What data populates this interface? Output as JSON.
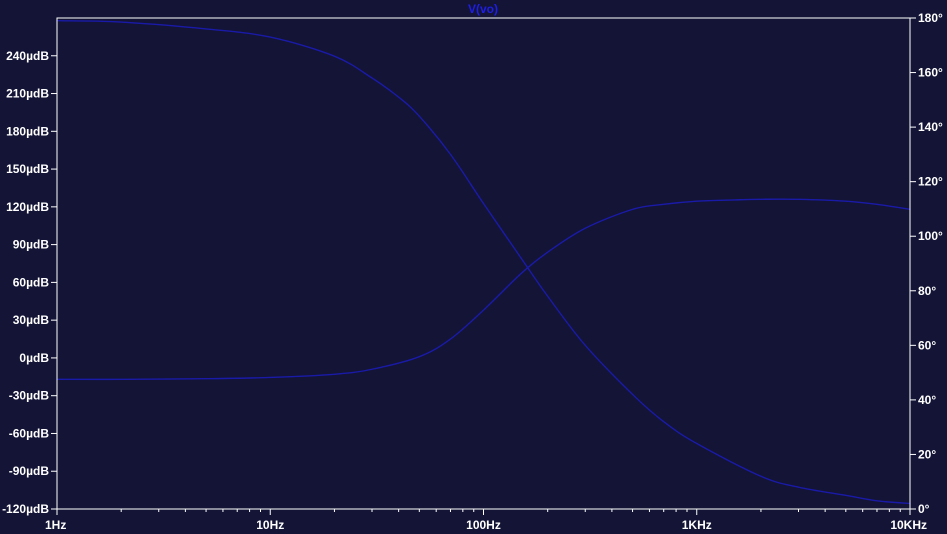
{
  "chart_data": {
    "type": "line",
    "title": "V(vo)",
    "x_scale": "log",
    "x_ticks": [
      {
        "value": 1,
        "label": "1Hz"
      },
      {
        "value": 10,
        "label": "10Hz"
      },
      {
        "value": 100,
        "label": "100Hz"
      },
      {
        "value": 1000,
        "label": "1KHz"
      },
      {
        "value": 10000,
        "label": "10KHz"
      }
    ],
    "xlim": [
      1,
      10000
    ],
    "y_left": {
      "unit": "µdB",
      "ylim": [
        -120,
        270
      ],
      "ticks": [
        {
          "value": 240,
          "label": "240µdB"
        },
        {
          "value": 210,
          "label": "210µdB"
        },
        {
          "value": 180,
          "label": "180µdB"
        },
        {
          "value": 150,
          "label": "150µdB"
        },
        {
          "value": 120,
          "label": "120µdB"
        },
        {
          "value": 90,
          "label": "90µdB"
        },
        {
          "value": 60,
          "label": "60µdB"
        },
        {
          "value": 30,
          "label": "30µdB"
        },
        {
          "value": 0,
          "label": "0µdB"
        },
        {
          "value": -30,
          "label": "-30µdB"
        },
        {
          "value": -60,
          "label": "-60µdB"
        },
        {
          "value": -90,
          "label": "-90µdB"
        },
        {
          "value": -120,
          "label": "-120µdB"
        }
      ]
    },
    "y_right": {
      "unit": "°",
      "ylim": [
        0,
        180
      ],
      "ticks": [
        {
          "value": 180,
          "label": "180°"
        },
        {
          "value": 160,
          "label": "160°"
        },
        {
          "value": 140,
          "label": "140°"
        },
        {
          "value": 120,
          "label": "120°"
        },
        {
          "value": 100,
          "label": "100°"
        },
        {
          "value": 80,
          "label": "80°"
        },
        {
          "value": 60,
          "label": "60°"
        },
        {
          "value": 40,
          "label": "40°"
        },
        {
          "value": 20,
          "label": "20°"
        },
        {
          "value": 0,
          "label": "0°"
        }
      ]
    },
    "series": [
      {
        "axis": "left",
        "color": "#1a1aa8",
        "x": [
          1,
          2,
          5,
          10,
          20,
          30,
          50,
          70,
          100,
          150,
          200,
          300,
          500,
          700,
          1000,
          1500,
          2000,
          3000,
          5000,
          7000,
          10000
        ],
        "y": [
          -17,
          -17,
          -16.5,
          -15.5,
          -13,
          -9,
          1,
          15,
          38,
          67,
          84,
          103,
          118,
          122,
          124.5,
          125.5,
          126,
          126,
          124.5,
          122,
          118
        ]
      },
      {
        "axis": "right",
        "color": "#1a1aa8",
        "x": [
          1,
          2,
          5,
          10,
          20,
          30,
          40,
          50,
          70,
          100,
          150,
          200,
          300,
          500,
          700,
          1000,
          2000,
          3000,
          5000,
          7000,
          10000
        ],
        "y": [
          179,
          178.5,
          176,
          173,
          166,
          158,
          151,
          144,
          130,
          112,
          92,
          78,
          60,
          42,
          32,
          24,
          12,
          8,
          5,
          3,
          2
        ]
      }
    ]
  },
  "colors": {
    "background": "#131436",
    "axes": "#ffffff",
    "title": "#1e1ee8",
    "trace": "#1a1aa8"
  }
}
